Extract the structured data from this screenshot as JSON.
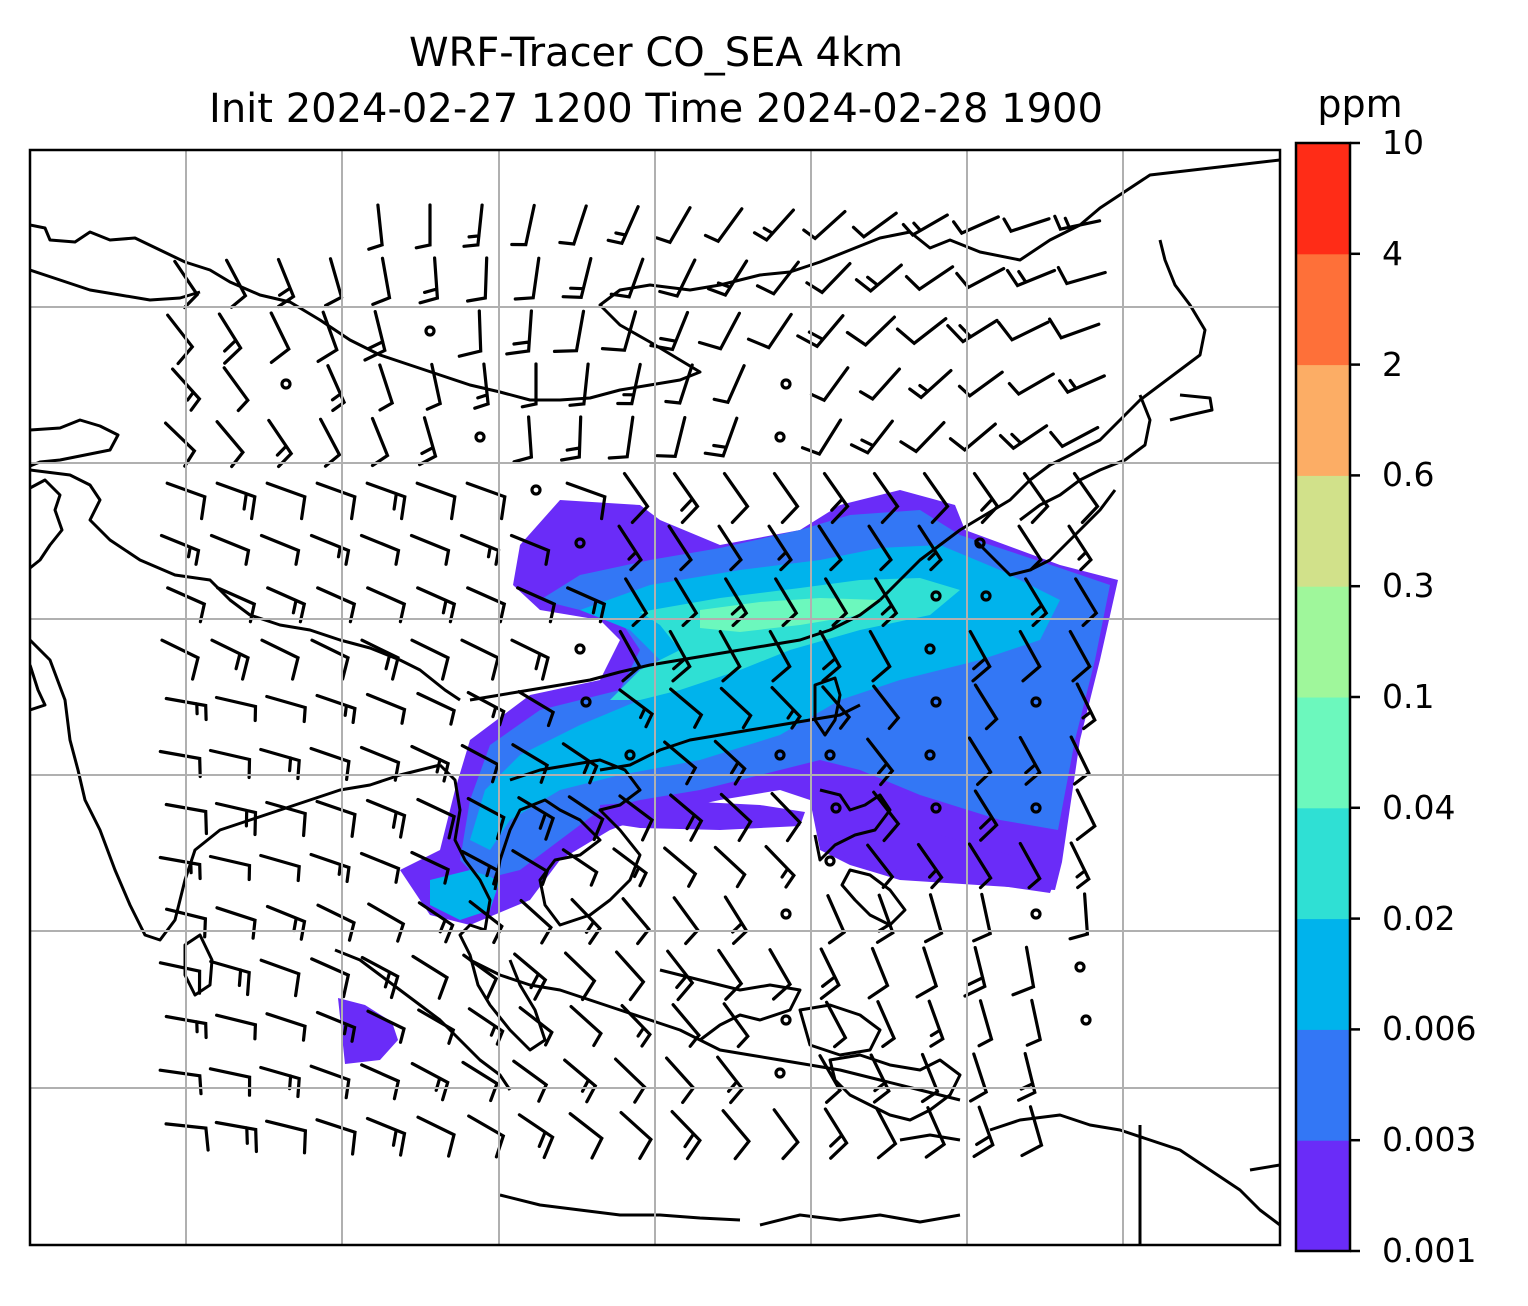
{
  "title": {
    "line1": "WRF-Tracer CO_SEA 4km",
    "line2": "Init 2024-02-27 1200 Time 2024-02-28 1900"
  },
  "colorbar": {
    "unit": "ppm",
    "ticks": [
      "0.001",
      "0.003",
      "0.006",
      "0.02",
      "0.04",
      "0.1",
      "0.3",
      "0.6",
      "2",
      "4",
      "10"
    ],
    "colors": [
      "#6a2cf8",
      "#3377f5",
      "#00b3ec",
      "#2fe0d4",
      "#6cf8bd",
      "#9ff79b",
      "#d1e18a",
      "#fcad65",
      "#fe7039",
      "#ff2c17"
    ]
  },
  "map": {
    "region": "Southeast Asia",
    "gridlines": true,
    "wind_barbs": true,
    "field": "CO tracer concentration"
  }
}
